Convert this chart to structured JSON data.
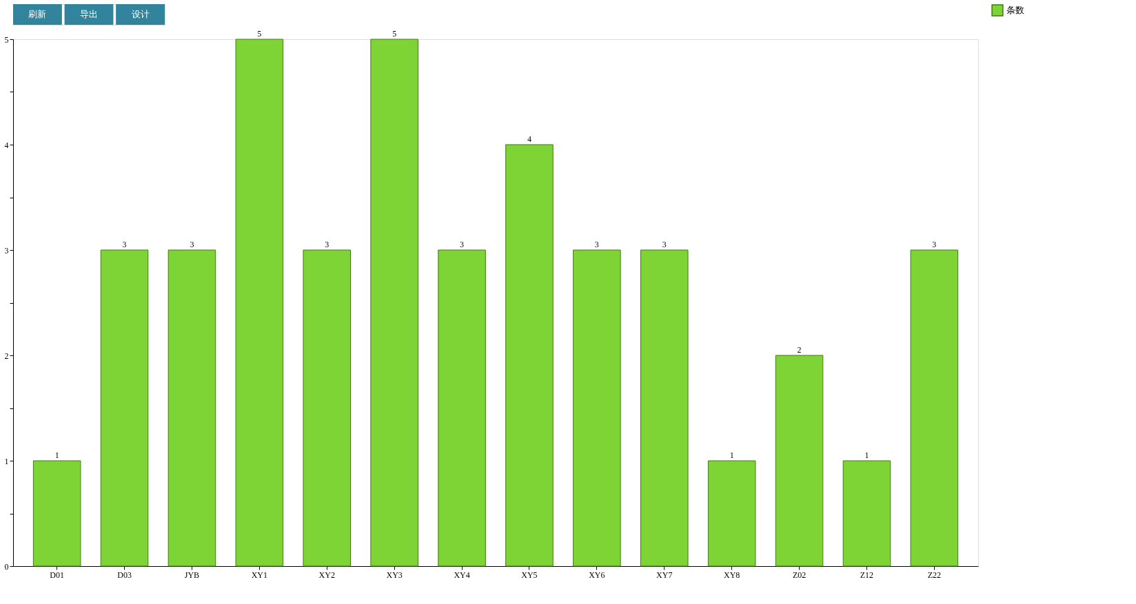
{
  "chart_data": {
    "type": "bar",
    "categories": [
      "D01",
      "D03",
      "JYB",
      "XY1",
      "XY2",
      "XY3",
      "XY4",
      "XY5",
      "XY6",
      "XY7",
      "XY8",
      "Z02",
      "Z12",
      "Z22"
    ],
    "series": [
      {
        "name": "条数",
        "color": "#7ed434",
        "values": [
          1,
          3,
          3,
          5,
          3,
          5,
          3,
          4,
          3,
          3,
          1,
          2,
          1,
          3
        ]
      }
    ],
    "ylim": [
      0,
      5
    ],
    "yticks": [
      0,
      {
        "value": 0.5,
        "label": null
      },
      1,
      {
        "value": 1.5,
        "label": null
      },
      2,
      {
        "value": 2.5,
        "label": null
      },
      3,
      {
        "value": 3.5,
        "label": null
      },
      4,
      {
        "value": 4.5,
        "label": null
      },
      5
    ],
    "data_labels": true,
    "grid": false,
    "legend": "right",
    "annotations": [
      "刷新",
      "导出",
      "设计"
    ]
  }
}
